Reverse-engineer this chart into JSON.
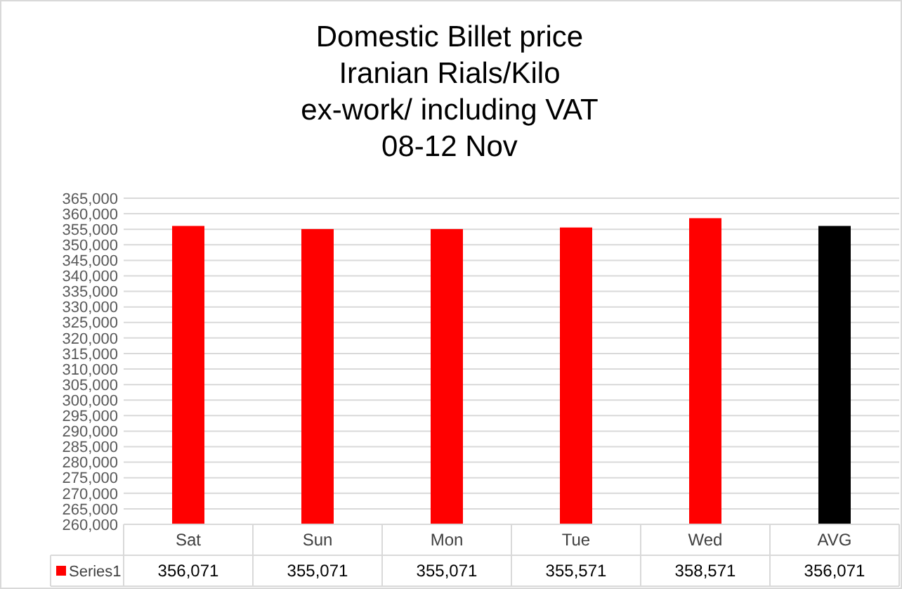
{
  "chart_data": {
    "type": "bar",
    "title": "Domestic  Billet price\nIranian Rials/Kilo\nex-work/ including VAT\n08-12  Nov",
    "categories": [
      "Sat",
      "Sun",
      "Mon",
      "Tue",
      "Wed",
      "AVG"
    ],
    "series": [
      {
        "name": "Series1",
        "color": "#ff0000",
        "colors": [
          "#ff0000",
          "#ff0000",
          "#ff0000",
          "#ff0000",
          "#ff0000",
          "#000000"
        ],
        "values": [
          356071,
          355071,
          355071,
          355571,
          358571,
          356071
        ],
        "value_labels": [
          "356,071",
          "355,071",
          "355,071",
          "355,571",
          "358,571",
          "356,071"
        ]
      }
    ],
    "ylim": [
      260000,
      365000
    ],
    "yticks": [
      {
        "value": 260000,
        "label": "260,000"
      },
      {
        "value": 265000,
        "label": "265,000"
      },
      {
        "value": 270000,
        "label": "270,000"
      },
      {
        "value": 275000,
        "label": "275,000"
      },
      {
        "value": 280000,
        "label": "280,000"
      },
      {
        "value": 285000,
        "label": "285,000"
      },
      {
        "value": 290000,
        "label": "290,000"
      },
      {
        "value": 295000,
        "label": "295,000"
      },
      {
        "value": 300000,
        "label": "300,000"
      },
      {
        "value": 305000,
        "label": "305,000"
      },
      {
        "value": 310000,
        "label": "310,000"
      },
      {
        "value": 315000,
        "label": "315,000"
      },
      {
        "value": 320000,
        "label": "320,000"
      },
      {
        "value": 325000,
        "label": "325,000"
      },
      {
        "value": 330000,
        "label": "330,000"
      },
      {
        "value": 335000,
        "label": "335,000"
      },
      {
        "value": 340000,
        "label": "340,000"
      },
      {
        "value": 345000,
        "label": "345,000"
      },
      {
        "value": 350000,
        "label": "350,000"
      },
      {
        "value": 355000,
        "label": "355,000"
      },
      {
        "value": 360000,
        "label": "360,000"
      },
      {
        "value": 365000,
        "label": "365,000"
      }
    ],
    "grid": "y",
    "legend": "bottom"
  }
}
